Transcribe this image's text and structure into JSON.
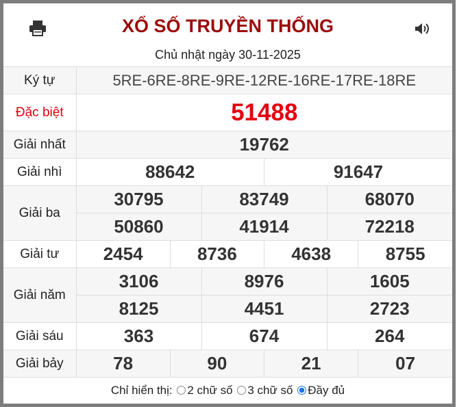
{
  "header": {
    "title": "XỔ SỐ TRUYỀN THỐNG",
    "date": "Chủ nhật ngày 30-11-2025",
    "icons": [
      "print-icon",
      "speaker-icon"
    ]
  },
  "results": {
    "ky_tu": {
      "label": "Ký tự",
      "value": "5RE-6RE-8RE-9RE-12RE-16RE-17RE-18RE"
    },
    "dac_biet": {
      "label": "Đặc biệt",
      "values": [
        "51488"
      ]
    },
    "nhat": {
      "label": "Giải nhất",
      "values": [
        "19762"
      ]
    },
    "nhi": {
      "label": "Giải nhì",
      "values": [
        "88642",
        "91647"
      ]
    },
    "ba": {
      "label": "Giải ba",
      "values": [
        "30795",
        "83749",
        "68070",
        "50860",
        "41914",
        "72218"
      ]
    },
    "tu": {
      "label": "Giải tư",
      "values": [
        "2454",
        "8736",
        "4638",
        "8755"
      ]
    },
    "nam": {
      "label": "Giải năm",
      "values": [
        "3106",
        "8976",
        "1605",
        "8125",
        "4451",
        "2723"
      ]
    },
    "sau": {
      "label": "Giải sáu",
      "values": [
        "363",
        "674",
        "264"
      ]
    },
    "bay": {
      "label": "Giải bảy",
      "values": [
        "78",
        "90",
        "21",
        "07"
      ]
    }
  },
  "footer": {
    "label": "Chỉ hiển thị:",
    "options": [
      {
        "label": "2 chữ số",
        "selected": false
      },
      {
        "label": "3 chữ số",
        "selected": false
      },
      {
        "label": "Đầy đủ",
        "selected": true
      }
    ]
  },
  "colors": {
    "title": "#9b0b0b",
    "special": "#e3000f",
    "radio_selected": "#1a73e8"
  }
}
